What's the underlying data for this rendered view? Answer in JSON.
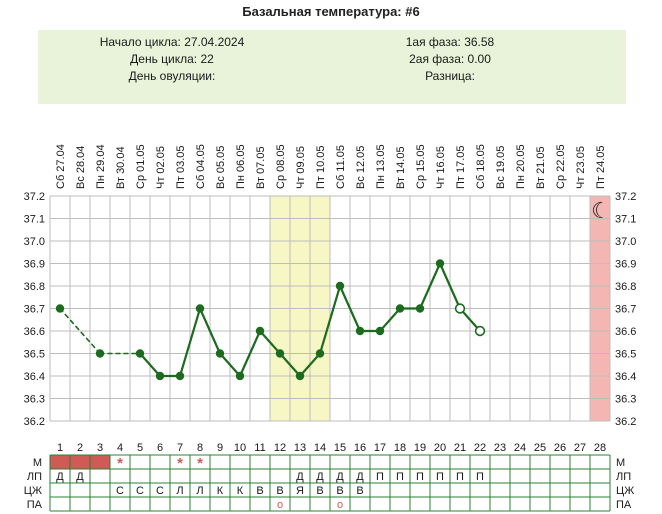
{
  "title": "Базальная температура: #6",
  "header": {
    "left": [
      {
        "label": "Начало цикла:",
        "value": "27.04.2024"
      },
      {
        "label": "День цикла:",
        "value": "22"
      },
      {
        "label": "День овуляции:",
        "value": ""
      }
    ],
    "right": [
      {
        "label": "1ая фаза:",
        "value": "36.58"
      },
      {
        "label": "2ая фаза:",
        "value": "0.00"
      },
      {
        "label": "Разница:",
        "value": ""
      }
    ]
  },
  "colors": {
    "header_bg": "#e9f3d9",
    "band_yellow": "#f7f6c5",
    "band_pink": "#f4b6b2",
    "line_green": "#1d6b1f",
    "table_border": "#2e8033",
    "red": "#d05a55",
    "grid": "#bdbdbd",
    "text": "#1a1a1a"
  },
  "chart_data": {
    "type": "line",
    "title": "Базальная температура: #6",
    "ylabel": "",
    "xlabel": "",
    "ylim": [
      36.2,
      37.2
    ],
    "ytick_step": 0.1,
    "grid": true,
    "days": [
      {
        "num": 1,
        "date": "Сб 27.04",
        "temp": 36.7
      },
      {
        "num": 2,
        "date": "Вс 28.04",
        "temp": null
      },
      {
        "num": 3,
        "date": "Пн 29.04",
        "temp": 36.5
      },
      {
        "num": 4,
        "date": "Вт 30.04",
        "temp": null
      },
      {
        "num": 5,
        "date": "Ср 01.05",
        "temp": 36.5
      },
      {
        "num": 6,
        "date": "Чт 02.05",
        "temp": 36.4
      },
      {
        "num": 7,
        "date": "Пт 03.05",
        "temp": 36.4
      },
      {
        "num": 8,
        "date": "Сб 04.05",
        "temp": 36.7
      },
      {
        "num": 9,
        "date": "Вс 05.05",
        "temp": 36.5
      },
      {
        "num": 10,
        "date": "Пн 06.05",
        "temp": 36.4
      },
      {
        "num": 11,
        "date": "Вт 07.05",
        "temp": 36.6
      },
      {
        "num": 12,
        "date": "Ср 08.05",
        "temp": 36.5
      },
      {
        "num": 13,
        "date": "Чт 09.05",
        "temp": 36.4
      },
      {
        "num": 14,
        "date": "Пт 10.05",
        "temp": 36.5
      },
      {
        "num": 15,
        "date": "Сб 11.05",
        "temp": 36.8
      },
      {
        "num": 16,
        "date": "Вс 12.05",
        "temp": 36.6
      },
      {
        "num": 17,
        "date": "Пн 13.05",
        "temp": 36.6
      },
      {
        "num": 18,
        "date": "Вт 14.05",
        "temp": 36.7
      },
      {
        "num": 19,
        "date": "Ср 15.05",
        "temp": 36.7
      },
      {
        "num": 20,
        "date": "Чт 16.05",
        "temp": 36.9
      },
      {
        "num": 21,
        "date": "Пт 17.05",
        "temp": 36.7
      },
      {
        "num": 22,
        "date": "Сб 18.05",
        "temp": 36.6
      },
      {
        "num": 23,
        "date": "Вс 19.05",
        "temp": null
      },
      {
        "num": 24,
        "date": "Пн 20.05",
        "temp": null
      },
      {
        "num": 25,
        "date": "Вт 21.05",
        "temp": null
      },
      {
        "num": 26,
        "date": "Ср 22.05",
        "temp": null
      },
      {
        "num": 27,
        "date": "Чт 23.05",
        "temp": null
      },
      {
        "num": 28,
        "date": "Пт 24.05",
        "temp": null
      }
    ],
    "open_marker_days": [
      21,
      22
    ],
    "bands": [
      {
        "from_day": 12,
        "to_day": 14,
        "kind": "fertile"
      },
      {
        "from_day": 28,
        "to_day": 28,
        "kind": "predicted-period"
      }
    ],
    "moon_icon_day": 28
  },
  "table": {
    "rows": [
      {
        "label": "М",
        "fill_days": [
          1,
          2,
          3
        ],
        "cells": [
          {
            "day": 4,
            "text": "*",
            "color": "red"
          },
          {
            "day": 7,
            "text": "*",
            "color": "red"
          },
          {
            "day": 8,
            "text": "*",
            "color": "red"
          }
        ]
      },
      {
        "label": "ЛП",
        "fill_days": [],
        "cells": [
          {
            "day": 1,
            "text": "Д"
          },
          {
            "day": 2,
            "text": "Д"
          },
          {
            "day": 13,
            "text": "Д"
          },
          {
            "day": 14,
            "text": "Д"
          },
          {
            "day": 15,
            "text": "Д"
          },
          {
            "day": 16,
            "text": "Д"
          },
          {
            "day": 17,
            "text": "П"
          },
          {
            "day": 18,
            "text": "П"
          },
          {
            "day": 19,
            "text": "П"
          },
          {
            "day": 20,
            "text": "П"
          },
          {
            "day": 21,
            "text": "П"
          },
          {
            "day": 22,
            "text": "П"
          }
        ]
      },
      {
        "label": "ЦЖ",
        "fill_days": [],
        "cells": [
          {
            "day": 4,
            "text": "С"
          },
          {
            "day": 5,
            "text": "С"
          },
          {
            "day": 6,
            "text": "С"
          },
          {
            "day": 7,
            "text": "Л"
          },
          {
            "day": 8,
            "text": "Л"
          },
          {
            "day": 9,
            "text": "К"
          },
          {
            "day": 10,
            "text": "К"
          },
          {
            "day": 11,
            "text": "В"
          },
          {
            "day": 12,
            "text": "В"
          },
          {
            "day": 13,
            "text": "Я"
          },
          {
            "day": 14,
            "text": "В"
          },
          {
            "day": 15,
            "text": "В"
          },
          {
            "day": 16,
            "text": "В"
          }
        ]
      },
      {
        "label": "ПА",
        "fill_days": [],
        "cells": [
          {
            "day": 12,
            "text": "о",
            "color": "red"
          },
          {
            "day": 15,
            "text": "о",
            "color": "red"
          }
        ]
      }
    ]
  }
}
